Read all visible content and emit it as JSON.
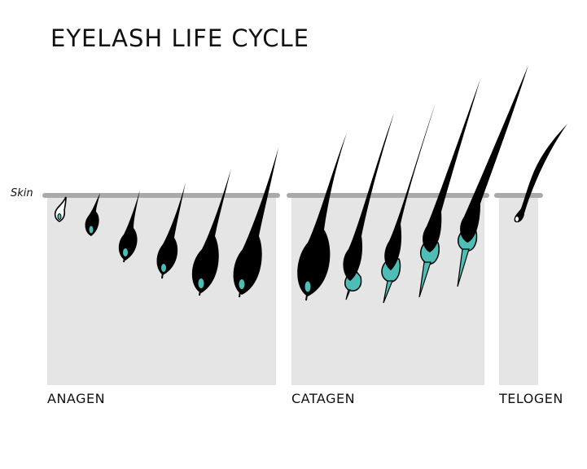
{
  "title": "EYELASH LIFE CYCLE",
  "skin_label": "Skin",
  "phases": [
    {
      "key": "anagen",
      "label": "ANAGEN"
    },
    {
      "key": "catagen",
      "label": "CATAGEN"
    },
    {
      "key": "telogen",
      "label": "TELOGEN"
    }
  ],
  "colors": {
    "panel": "#e5e5e5",
    "skin_line": "#aaaaaa",
    "lash": "#000000",
    "papilla": "#4dbdb5"
  }
}
